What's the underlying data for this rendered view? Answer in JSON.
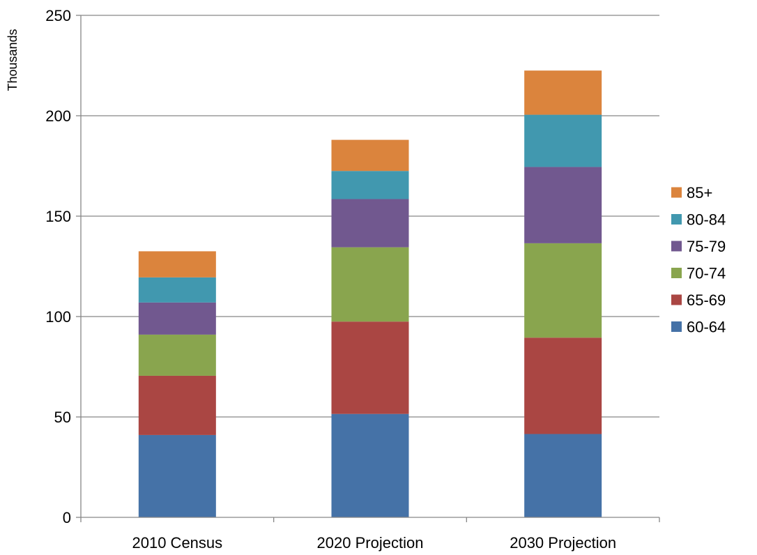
{
  "chart_data": {
    "type": "bar",
    "stacked": true,
    "categories": [
      "2010 Census",
      "2020 Projection",
      "2030 Projection"
    ],
    "series": [
      {
        "name": "60-64",
        "color": "#4572A7",
        "values": [
          41,
          51.5,
          41.5
        ]
      },
      {
        "name": "65-69",
        "color": "#AA4643",
        "values": [
          29.5,
          46,
          48
        ]
      },
      {
        "name": "70-74",
        "color": "#89A54E",
        "values": [
          20.5,
          37,
          47
        ]
      },
      {
        "name": "75-79",
        "color": "#71588F",
        "values": [
          16,
          24,
          38
        ]
      },
      {
        "name": "80-84",
        "color": "#4198AF",
        "values": [
          12.5,
          14,
          26
        ]
      },
      {
        "name": "85+",
        "color": "#DB843D",
        "values": [
          13,
          15.5,
          22
        ]
      }
    ],
    "ylabel": "Thousands",
    "xlabel": "",
    "title": "",
    "ylim": [
      0,
      250
    ],
    "yticks": [
      0,
      50,
      100,
      150,
      200,
      250
    ],
    "grid": true,
    "legend_position": "right",
    "legend_order": [
      "85+",
      "80-84",
      "75-79",
      "70-74",
      "65-69",
      "60-64"
    ]
  }
}
